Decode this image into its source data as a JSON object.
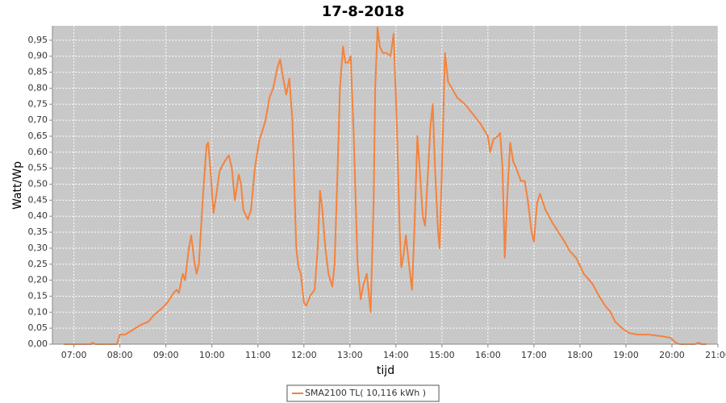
{
  "chart_data": {
    "type": "line",
    "title": "17-8-2018",
    "x_label": "tijd",
    "y_label": "Watt/Wp",
    "x": [
      407,
      443,
      444,
      448,
      476,
      480,
      487,
      497,
      507,
      517,
      524,
      534,
      542,
      550,
      554,
      557,
      562,
      565,
      570,
      573,
      577,
      580,
      583,
      588,
      593,
      595,
      598,
      602,
      606,
      610,
      614,
      619,
      622,
      626,
      630,
      635,
      638,
      641,
      647,
      651,
      656,
      662,
      665,
      670,
      675,
      680,
      685,
      689,
      693,
      697,
      701,
      705,
      710,
      713,
      716,
      720,
      723,
      728,
      734,
      738,
      741,
      744,
      748,
      752,
      757,
      760,
      764,
      767,
      771,
      774,
      778,
      781,
      785,
      790,
      794,
      798,
      802,
      805,
      807,
      811,
      813,
      816,
      819,
      823,
      828,
      833,
      837,
      841,
      845,
      847,
      850,
      853,
      857,
      861,
      864,
      868,
      871,
      875,
      878,
      881,
      885,
      888,
      891,
      895,
      897,
      900,
      904,
      908,
      913,
      920,
      930,
      940,
      950,
      955,
      960,
      963,
      967,
      973,
      976,
      979,
      982,
      985,
      989,
      993,
      997,
      1003,
      1008,
      1012,
      1017,
      1020,
      1024,
      1028,
      1035,
      1044,
      1052,
      1060,
      1067,
      1075,
      1085,
      1096,
      1105,
      1113,
      1120,
      1126,
      1135,
      1144,
      1155,
      1170,
      1186,
      1198,
      1205,
      1210,
      1230,
      1235,
      1238,
      1245
    ],
    "series": [
      {
        "name": "SMA2100 TL( 10,116 kWh )",
        "color": "#f5823c",
        "values": [
          0,
          0,
          0.005,
          0,
          0,
          0.03,
          0.03,
          0.045,
          0.06,
          0.07,
          0.09,
          0.11,
          0.13,
          0.16,
          0.17,
          0.16,
          0.22,
          0.2,
          0.3,
          0.34,
          0.26,
          0.22,
          0.25,
          0.45,
          0.62,
          0.63,
          0.55,
          0.41,
          0.47,
          0.54,
          0.56,
          0.58,
          0.59,
          0.55,
          0.45,
          0.53,
          0.5,
          0.42,
          0.39,
          0.42,
          0.55,
          0.64,
          0.66,
          0.7,
          0.77,
          0.8,
          0.86,
          0.89,
          0.83,
          0.78,
          0.83,
          0.7,
          0.3,
          0.24,
          0.22,
          0.13,
          0.12,
          0.15,
          0.17,
          0.3,
          0.48,
          0.42,
          0.3,
          0.22,
          0.18,
          0.25,
          0.55,
          0.8,
          0.93,
          0.88,
          0.88,
          0.9,
          0.65,
          0.25,
          0.14,
          0.19,
          0.22,
          0.15,
          0.1,
          0.45,
          0.8,
          0.99,
          0.93,
          0.91,
          0.91,
          0.9,
          0.97,
          0.7,
          0.35,
          0.24,
          0.28,
          0.34,
          0.25,
          0.17,
          0.35,
          0.65,
          0.55,
          0.4,
          0.37,
          0.5,
          0.68,
          0.75,
          0.55,
          0.35,
          0.3,
          0.55,
          0.91,
          0.82,
          0.8,
          0.77,
          0.75,
          0.72,
          0.69,
          0.67,
          0.65,
          0.6,
          0.64,
          0.65,
          0.66,
          0.55,
          0.27,
          0.45,
          0.63,
          0.57,
          0.55,
          0.51,
          0.51,
          0.45,
          0.35,
          0.32,
          0.44,
          0.47,
          0.42,
          0.38,
          0.35,
          0.32,
          0.29,
          0.27,
          0.22,
          0.19,
          0.15,
          0.12,
          0.1,
          0.07,
          0.05,
          0.035,
          0.03,
          0.03,
          0.025,
          0.02,
          0.005,
          0,
          0,
          0.005,
          0,
          0
        ]
      }
    ],
    "xlim": [
      392,
      1260
    ],
    "ylim": [
      0,
      0.995
    ],
    "xticks": [
      {
        "value": 420,
        "label": "07:00"
      },
      {
        "value": 480,
        "label": "08:00"
      },
      {
        "value": 540,
        "label": "09:00"
      },
      {
        "value": 600,
        "label": "10:00"
      },
      {
        "value": 660,
        "label": "11:00"
      },
      {
        "value": 720,
        "label": "12:00"
      },
      {
        "value": 780,
        "label": "13:00"
      },
      {
        "value": 840,
        "label": "14:00"
      },
      {
        "value": 900,
        "label": "15:00"
      },
      {
        "value": 960,
        "label": "16:00"
      },
      {
        "value": 1020,
        "label": "17:00"
      },
      {
        "value": 1080,
        "label": "18:00"
      },
      {
        "value": 1140,
        "label": "19:00"
      },
      {
        "value": 1200,
        "label": "20:00"
      },
      {
        "value": 1260,
        "label": "21:00"
      }
    ],
    "yticks": [
      {
        "value": 0,
        "label": "0,00"
      },
      {
        "value": 0.05,
        "label": "0,05"
      },
      {
        "value": 0.1,
        "label": "0,10"
      },
      {
        "value": 0.15,
        "label": "0,15"
      },
      {
        "value": 0.2,
        "label": "0,20"
      },
      {
        "value": 0.25,
        "label": "0,25"
      },
      {
        "value": 0.3,
        "label": "0,30"
      },
      {
        "value": 0.35,
        "label": "0,35"
      },
      {
        "value": 0.4,
        "label": "0,40"
      },
      {
        "value": 0.45,
        "label": "0,45"
      },
      {
        "value": 0.5,
        "label": "0,50"
      },
      {
        "value": 0.55,
        "label": "0,55"
      },
      {
        "value": 0.6,
        "label": "0,60"
      },
      {
        "value": 0.65,
        "label": "0,65"
      },
      {
        "value": 0.7,
        "label": "0,70"
      },
      {
        "value": 0.75,
        "label": "0,75"
      },
      {
        "value": 0.8,
        "label": "0,80"
      },
      {
        "value": 0.85,
        "label": "0,85"
      },
      {
        "value": 0.9,
        "label": "0,90"
      },
      {
        "value": 0.95,
        "label": "0,95"
      }
    ],
    "grid": true,
    "legend": "bottom"
  }
}
